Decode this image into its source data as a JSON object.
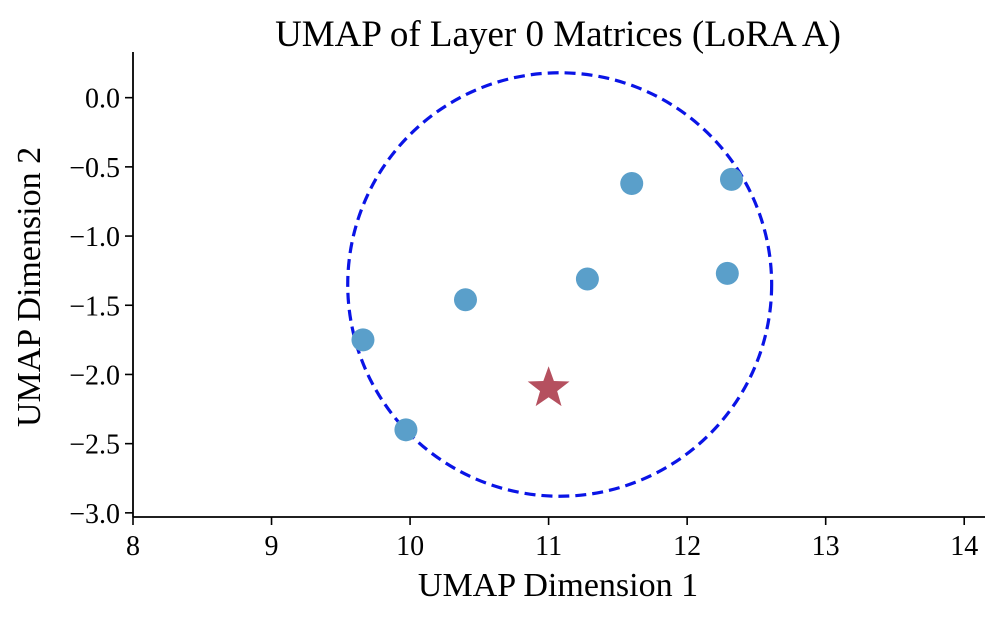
{
  "chart_data": {
    "type": "scatter",
    "title": "UMAP of Layer 0 Matrices (LoRA A)",
    "xlabel": "UMAP Dimension 1",
    "ylabel": "UMAP Dimension 2",
    "xlim": [
      8.0,
      14.15
    ],
    "ylim": [
      -3.03,
      0.33
    ],
    "xticks": [
      8,
      9,
      10,
      11,
      12,
      13,
      14
    ],
    "xtick_labels": [
      "8",
      "9",
      "10",
      "11",
      "12",
      "13",
      "14"
    ],
    "yticks": [
      0.0,
      -0.5,
      -1.0,
      -1.5,
      -2.0,
      -2.5,
      -3.0
    ],
    "ytick_labels": [
      "0.0",
      "−0.5",
      "−1.0",
      "−1.5",
      "−2.0",
      "−2.5",
      "−3.0"
    ],
    "grid": false,
    "series": [
      {
        "marker": "circle",
        "color": "#5a9fca",
        "x": [
          9.66,
          9.97,
          10.4,
          11.28,
          11.6,
          12.29,
          12.32
        ],
        "y": [
          -1.75,
          -2.4,
          -1.46,
          -1.31,
          -0.62,
          -1.27,
          -0.59
        ]
      },
      {
        "marker": "star",
        "color": "#b5505f",
        "x": [
          11.0
        ],
        "y": [
          -2.1
        ]
      }
    ],
    "annotations": [
      {
        "shape": "circle",
        "style": "dashed",
        "color": "#0a14e6",
        "center": [
          11.08,
          -1.35
        ],
        "radius": 1.53
      }
    ]
  }
}
